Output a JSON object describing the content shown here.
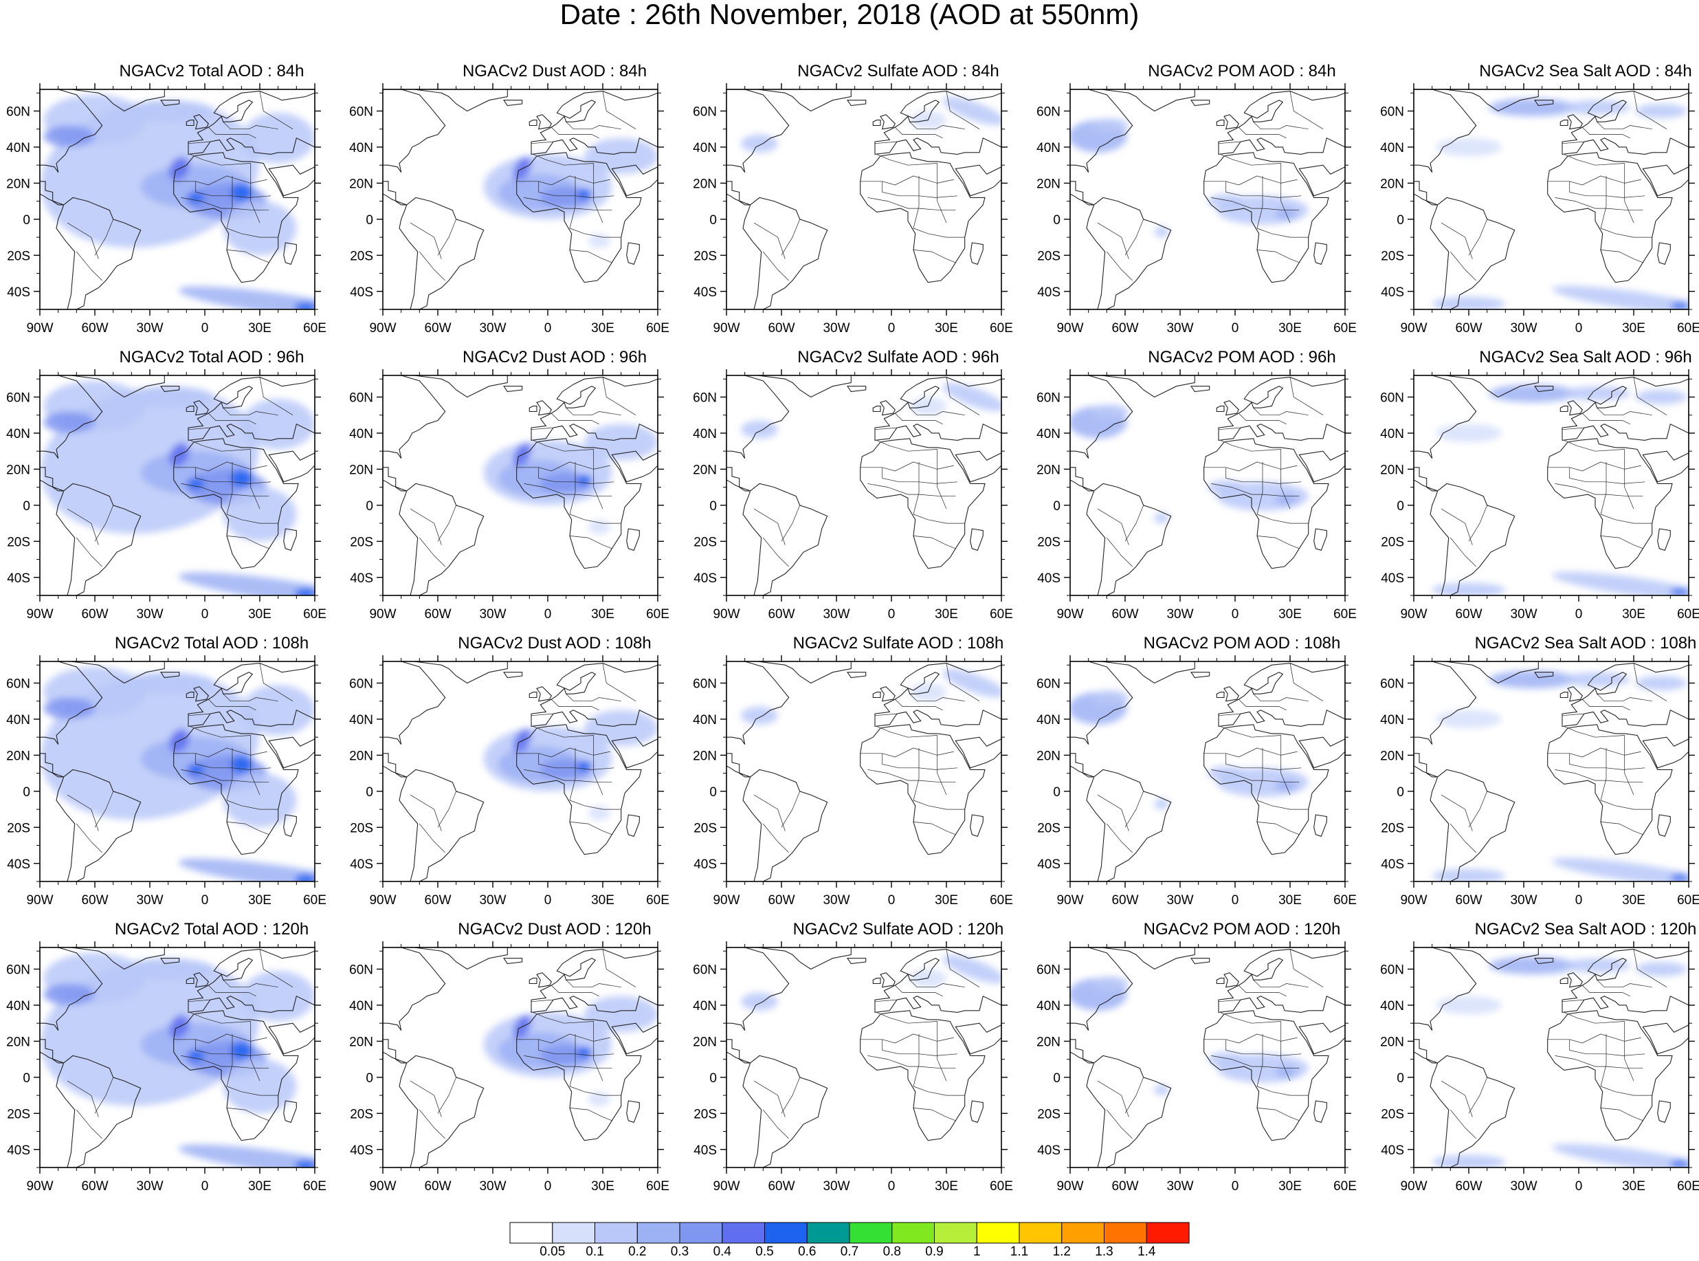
{
  "figure_title": "Date : 26th November, 2018 (AOD at 550nm)",
  "panels": [
    {
      "title": "NGACv2 Total AOD : 84h",
      "species": "total"
    },
    {
      "title": "NGACv2 Dust AOD : 84h",
      "species": "dust"
    },
    {
      "title": "NGACv2 Sulfate AOD : 84h",
      "species": "sulfate"
    },
    {
      "title": "NGACv2 POM AOD : 84h",
      "species": "pom"
    },
    {
      "title": "NGACv2 Sea Salt AOD : 84h",
      "species": "seasalt"
    },
    {
      "title": "NGACv2 Total AOD : 96h",
      "species": "total"
    },
    {
      "title": "NGACv2 Dust AOD : 96h",
      "species": "dust"
    },
    {
      "title": "NGACv2 Sulfate AOD : 96h",
      "species": "sulfate"
    },
    {
      "title": "NGACv2 POM AOD : 96h",
      "species": "pom"
    },
    {
      "title": "NGACv2 Sea Salt AOD : 96h",
      "species": "seasalt"
    },
    {
      "title": "NGACv2 Total AOD : 108h",
      "species": "total"
    },
    {
      "title": "NGACv2 Dust AOD : 108h",
      "species": "dust"
    },
    {
      "title": "NGACv2 Sulfate AOD : 108h",
      "species": "sulfate"
    },
    {
      "title": "NGACv2 POM AOD : 108h",
      "species": "pom"
    },
    {
      "title": "NGACv2 Sea Salt AOD : 108h",
      "species": "seasalt"
    },
    {
      "title": "NGACv2 Total AOD : 120h",
      "species": "total"
    },
    {
      "title": "NGACv2 Dust AOD : 120h",
      "species": "dust"
    },
    {
      "title": "NGACv2 Sulfate AOD : 120h",
      "species": "sulfate"
    },
    {
      "title": "NGACv2 POM AOD : 120h",
      "species": "pom"
    },
    {
      "title": "NGACv2 Sea Salt  AOD : 120h",
      "species": "seasalt"
    }
  ],
  "map_axes": {
    "lon_ticks": [
      "90W",
      "60W",
      "30W",
      "0",
      "30E",
      "60E"
    ],
    "lat_ticks": [
      "60N",
      "40N",
      "20N",
      "0",
      "20S",
      "40S"
    ]
  },
  "colorbar": {
    "labels": [
      "0.05",
      "0.1",
      "0.2",
      "0.3",
      "0.4",
      "0.5",
      "0.6",
      "0.7",
      "0.8",
      "0.9",
      "1",
      "1.1",
      "1.2",
      "1.3",
      "1.4"
    ],
    "colors": [
      "#ffffff",
      "#d6e0fb",
      "#b9c8f8",
      "#9db2f5",
      "#8097f1",
      "#5f6ff0",
      "#1d63f0",
      "#009a95",
      "#33e033",
      "#7fe81e",
      "#b6ef3a",
      "#ffff00",
      "#ffc600",
      "#ffa000",
      "#ff7300",
      "#ff1a00"
    ]
  }
}
